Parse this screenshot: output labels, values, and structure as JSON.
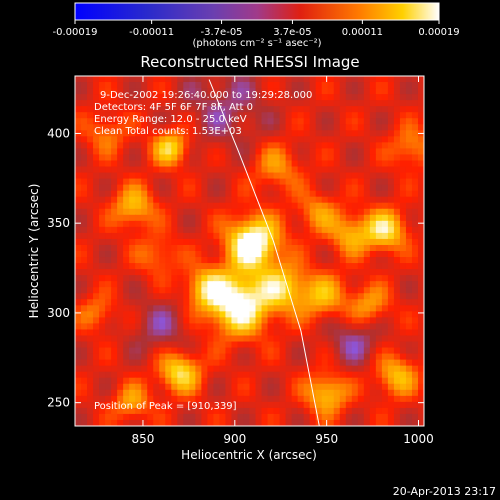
{
  "colorbar": {
    "tick_labels": [
      "-0.00019",
      "-0.00011",
      "-3.7e-05",
      "3.7e-05",
      "0.00011",
      "0.00019"
    ],
    "tick_values": [
      -0.00019,
      -0.00011,
      -3.7e-05,
      3.7e-05,
      0.00011,
      0.00019
    ],
    "range": [
      -0.00019,
      0.00019
    ],
    "units": "(photons cm⁻² s⁻¹ asec⁻²)"
  },
  "chart_data": {
    "type": "heatmap",
    "title": "Reconstructed RHESSI Image",
    "xlabel": "Heliocentric X (arcsec)",
    "ylabel": "Heliocentric Y (arcsec)",
    "xlim": [
      813,
      1003
    ],
    "ylim": [
      237,
      432
    ],
    "xticks": [
      850,
      900,
      950,
      1000
    ],
    "yticks": [
      250,
      300,
      350,
      400
    ],
    "colormap": [
      "#0000ff",
      "#3a2a8a",
      "#7a4cc4",
      "#8d55d8",
      "#b03030",
      "#ff2000",
      "#ff8a00",
      "#ffd000",
      "#ffffff"
    ],
    "sources": [
      {
        "x": 910,
        "y": 339,
        "amp": 0.00019,
        "width": 10
      },
      {
        "x": 902,
        "y": 305,
        "amp": 0.00018,
        "width": 12
      },
      {
        "x": 927,
        "y": 314,
        "amp": 0.00011,
        "width": 9
      },
      {
        "x": 884,
        "y": 314,
        "amp": 0.0001,
        "width": 8
      },
      {
        "x": 982,
        "y": 346,
        "amp": 0.00013,
        "width": 8
      },
      {
        "x": 963,
        "y": 344,
        "amp": 9e-05,
        "width": 8
      },
      {
        "x": 948,
        "y": 309,
        "amp": 9e-05,
        "width": 9
      },
      {
        "x": 973,
        "y": 304,
        "amp": 8e-05,
        "width": 8
      },
      {
        "x": 865,
        "y": 392,
        "amp": 0.00012,
        "width": 7
      },
      {
        "x": 845,
        "y": 359,
        "amp": 0.0001,
        "width": 8
      },
      {
        "x": 870,
        "y": 267,
        "amp": 0.00013,
        "width": 8
      },
      {
        "x": 844,
        "y": 250,
        "amp": 8e-05,
        "width": 7
      },
      {
        "x": 950,
        "y": 255,
        "amp": 0.00011,
        "width": 8
      },
      {
        "x": 988,
        "y": 265,
        "amp": 0.0001,
        "width": 8
      },
      {
        "x": 923,
        "y": 381,
        "amp": 7e-05,
        "width": 9
      },
      {
        "x": 945,
        "y": 356,
        "amp": 7e-05,
        "width": 8
      },
      {
        "x": 825,
        "y": 300,
        "amp": 6e-05,
        "width": 7
      },
      {
        "x": 830,
        "y": 400,
        "amp": 6e-05,
        "width": 8
      },
      {
        "x": 996,
        "y": 392,
        "amp": 7e-05,
        "width": 8
      },
      {
        "x": 858,
        "y": 332,
        "amp": 6e-05,
        "width": 8
      }
    ],
    "limb_curve": {
      "x": [
        886,
        902,
        921,
        936,
        946
      ],
      "y": [
        430,
        390,
        340,
        290,
        237
      ]
    },
    "annotations": [
      "9-Dec-2002 19:26:40.000 to 19:29:28.000",
      "Detectors: 4F 5F 6F 7F 8F, Att 0",
      "Energy Range: 12.0 - 25.0 keV",
      "Clean     Total counts: 1.53E+03"
    ],
    "peak_label": "Position of Peak = [910,339]",
    "peak": [
      910,
      339
    ],
    "grid": false
  },
  "footer": {
    "date_label": "20-Apr-2013 23:17"
  }
}
